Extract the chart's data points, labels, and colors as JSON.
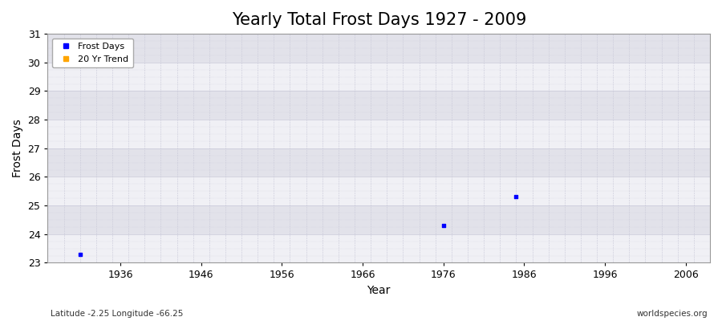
{
  "title": "Yearly Total Frost Days 1927 - 2009",
  "xlabel": "Year",
  "ylabel": "Frost Days",
  "xlim": [
    1927,
    2009
  ],
  "ylim": [
    23,
    31
  ],
  "yticks": [
    23,
    24,
    25,
    26,
    27,
    28,
    29,
    30,
    31
  ],
  "xticks": [
    1936,
    1946,
    1956,
    1966,
    1976,
    1986,
    1996,
    2006
  ],
  "data_points": [
    {
      "year": 1931,
      "value": 23.3
    },
    {
      "year": 1976,
      "value": 24.3
    },
    {
      "year": 1985,
      "value": 25.3
    }
  ],
  "point_color": "#0000ff",
  "point_size": 8,
  "bg_light": "#f0f0f5",
  "bg_dark": "#e2e2ea",
  "grid_color": "#c8c8d8",
  "legend_frost_label": "Frost Days",
  "legend_trend_label": "20 Yr Trend",
  "legend_frost_color": "#0000ff",
  "legend_trend_color": "#ffa500",
  "subtitle_left": "Latitude -2.25 Longitude -66.25",
  "subtitle_right": "worldspecies.org",
  "title_fontsize": 15,
  "label_fontsize": 10,
  "tick_fontsize": 9,
  "fig_bg": "#ffffff"
}
